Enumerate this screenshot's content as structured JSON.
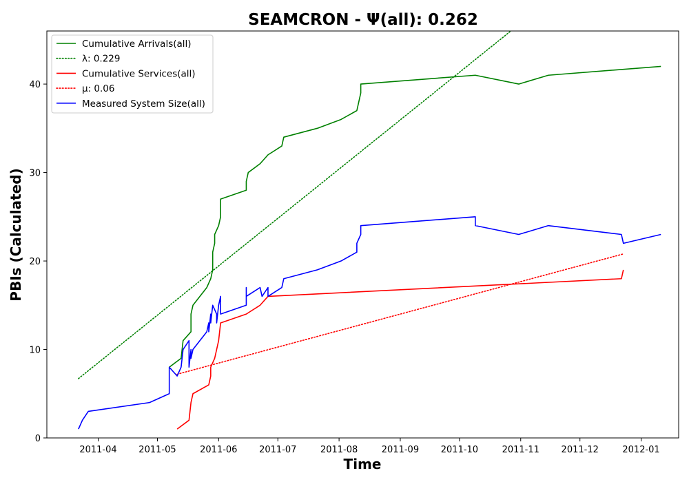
{
  "chart_data": {
    "type": "line",
    "title": "SEAMCRON -  Ψ(all): 0.262",
    "xlabel": "Time",
    "ylabel": "PBIs (Calculated)",
    "xlim": [
      "2011-03-06",
      "2012-01-20"
    ],
    "ylim": [
      0,
      46
    ],
    "x_ticks": [
      "2011-04",
      "2011-05",
      "2011-06",
      "2011-07",
      "2011-08",
      "2011-09",
      "2011-10",
      "2011-11",
      "2011-12",
      "2012-01"
    ],
    "y_ticks": [
      0,
      10,
      20,
      30,
      40
    ],
    "grid": false,
    "legend_position": "top-left",
    "series": [
      {
        "name": "Cumulative Arrivals(all)",
        "color": "#008000",
        "style": "solid",
        "points": [
          [
            "2011-05-07",
            8
          ],
          [
            "2011-05-13",
            9
          ],
          [
            "2011-05-14",
            11
          ],
          [
            "2011-05-18",
            12
          ],
          [
            "2011-05-18",
            14
          ],
          [
            "2011-05-19",
            15
          ],
          [
            "2011-05-26",
            17
          ],
          [
            "2011-05-28",
            18
          ],
          [
            "2011-05-29",
            19
          ],
          [
            "2011-05-29",
            21
          ],
          [
            "2011-05-30",
            22
          ],
          [
            "2011-05-30",
            23
          ],
          [
            "2011-06-01",
            24
          ],
          [
            "2011-06-02",
            25
          ],
          [
            "2011-06-02",
            27
          ],
          [
            "2011-06-15",
            28
          ],
          [
            "2011-06-15",
            29
          ],
          [
            "2011-06-16",
            30
          ],
          [
            "2011-06-22",
            31
          ],
          [
            "2011-06-26",
            32
          ],
          [
            "2011-07-03",
            33
          ],
          [
            "2011-07-04",
            34
          ],
          [
            "2011-07-21",
            35
          ],
          [
            "2011-08-02",
            36
          ],
          [
            "2011-08-10",
            37
          ],
          [
            "2011-08-11",
            38
          ],
          [
            "2011-08-12",
            39
          ],
          [
            "2011-08-12",
            40
          ],
          [
            "2011-10-09",
            41
          ],
          [
            "2011-10-31",
            40
          ],
          [
            "2011-11-15",
            41
          ],
          [
            "2012-01-11",
            42
          ]
        ]
      },
      {
        "name": "λ: 0.229",
        "color": "#008000",
        "style": "dotted",
        "points": [
          [
            "2011-03-22",
            6.7
          ],
          [
            "2011-10-27",
            46
          ]
        ]
      },
      {
        "name": "Cumulative Services(all)",
        "color": "#ff0000",
        "style": "solid",
        "points": [
          [
            "2011-05-11",
            1
          ],
          [
            "2011-05-17",
            2
          ],
          [
            "2011-05-18",
            4
          ],
          [
            "2011-05-19",
            5
          ],
          [
            "2011-05-27",
            6
          ],
          [
            "2011-05-28",
            7
          ],
          [
            "2011-05-28",
            8
          ],
          [
            "2011-05-30",
            9
          ],
          [
            "2011-05-31",
            10
          ],
          [
            "2011-06-01",
            11
          ],
          [
            "2011-06-02",
            13
          ],
          [
            "2011-06-15",
            14
          ],
          [
            "2011-06-22",
            15
          ],
          [
            "2011-06-26",
            16
          ],
          [
            "2011-12-22",
            18
          ],
          [
            "2011-12-23",
            19
          ]
        ]
      },
      {
        "name": "μ: 0.06",
        "color": "#ff0000",
        "style": "dotted",
        "points": [
          [
            "2011-05-11",
            7.2
          ],
          [
            "2011-12-23",
            20.8
          ]
        ]
      },
      {
        "name": "Measured System Size(all)",
        "color": "#0000ff",
        "style": "solid",
        "points": [
          [
            "2011-03-22",
            1
          ],
          [
            "2011-03-24",
            2
          ],
          [
            "2011-03-27",
            3
          ],
          [
            "2011-04-27",
            4
          ],
          [
            "2011-05-07",
            5
          ],
          [
            "2011-05-07",
            8
          ],
          [
            "2011-05-11",
            7
          ],
          [
            "2011-05-13",
            8
          ],
          [
            "2011-05-14",
            10
          ],
          [
            "2011-05-17",
            11
          ],
          [
            "2011-05-17",
            8
          ],
          [
            "2011-05-18",
            10
          ],
          [
            "2011-05-18",
            9
          ],
          [
            "2011-05-19",
            10
          ],
          [
            "2011-05-26",
            12
          ],
          [
            "2011-05-27",
            13
          ],
          [
            "2011-05-27",
            12
          ],
          [
            "2011-05-28",
            14
          ],
          [
            "2011-05-28",
            13
          ],
          [
            "2011-05-29",
            15
          ],
          [
            "2011-05-31",
            14
          ],
          [
            "2011-05-31",
            13
          ],
          [
            "2011-06-01",
            15
          ],
          [
            "2011-06-02",
            16
          ],
          [
            "2011-06-02",
            14
          ],
          [
            "2011-06-15",
            15
          ],
          [
            "2011-06-15",
            17
          ],
          [
            "2011-06-15",
            16
          ],
          [
            "2011-06-22",
            17
          ],
          [
            "2011-06-23",
            16
          ],
          [
            "2011-06-26",
            17
          ],
          [
            "2011-06-26",
            16
          ],
          [
            "2011-07-03",
            17
          ],
          [
            "2011-07-04",
            18
          ],
          [
            "2011-07-21",
            19
          ],
          [
            "2011-08-02",
            20
          ],
          [
            "2011-08-10",
            21
          ],
          [
            "2011-08-10",
            22
          ],
          [
            "2011-08-12",
            23
          ],
          [
            "2011-08-12",
            24
          ],
          [
            "2011-10-09",
            25
          ],
          [
            "2011-10-09",
            24
          ],
          [
            "2011-10-31",
            23
          ],
          [
            "2011-11-15",
            24
          ],
          [
            "2011-12-22",
            23
          ],
          [
            "2011-12-23",
            22
          ],
          [
            "2012-01-11",
            23
          ]
        ]
      }
    ]
  }
}
